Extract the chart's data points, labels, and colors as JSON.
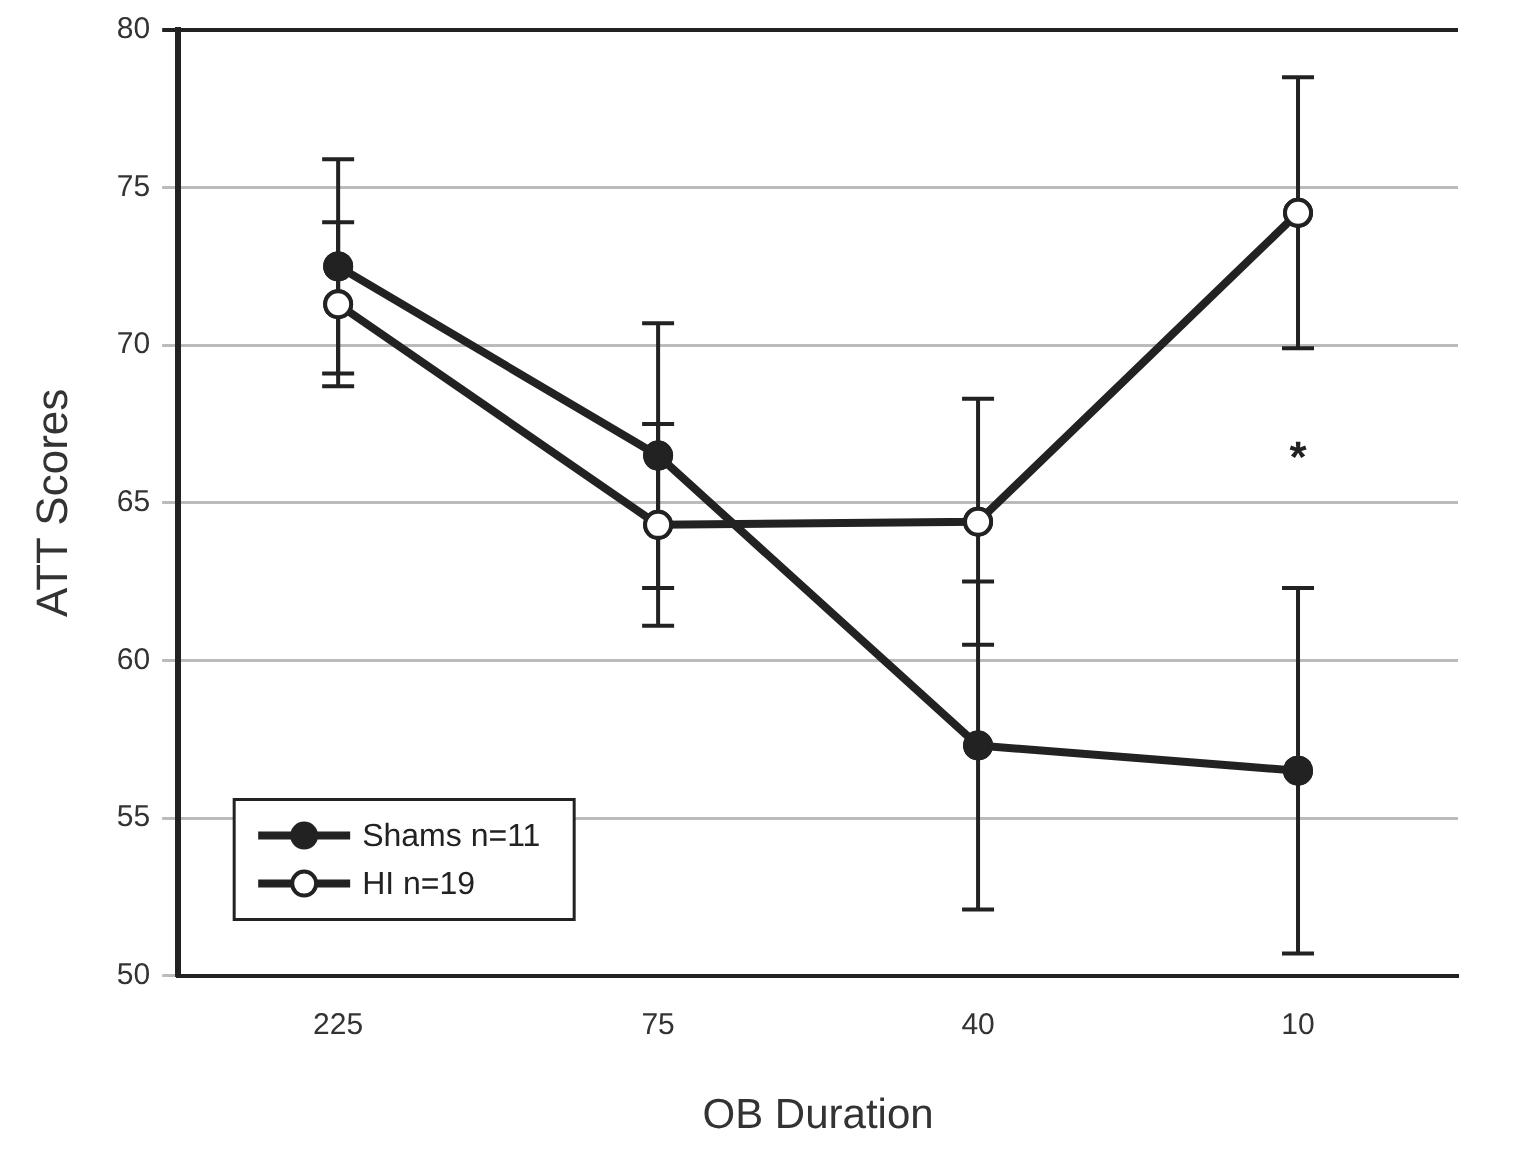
{
  "chart_data": {
    "type": "line",
    "xlabel": "OB Duration",
    "ylabel": "ATT Scores",
    "categories": [
      "225",
      "75",
      "40",
      "10"
    ],
    "series": [
      {
        "name": "Shams n=11",
        "color": "#222222",
        "values": [
          72.5,
          66.5,
          57.3,
          56.5
        ],
        "errors": [
          3.4,
          4.2,
          5.2,
          5.8
        ]
      },
      {
        "name": "HI n=19",
        "color": "#222222",
        "values": [
          71.3,
          64.3,
          64.4,
          74.2
        ],
        "errors": [
          2.6,
          3.2,
          3.9,
          4.3
        ]
      }
    ],
    "ylim": [
      50,
      80
    ],
    "yticks": [
      50,
      55,
      60,
      65,
      70,
      75,
      80
    ],
    "grid": "y",
    "legend": "bottom left",
    "marker": "circle",
    "line_style": "solid",
    "annotations": [
      "*"
    ]
  }
}
